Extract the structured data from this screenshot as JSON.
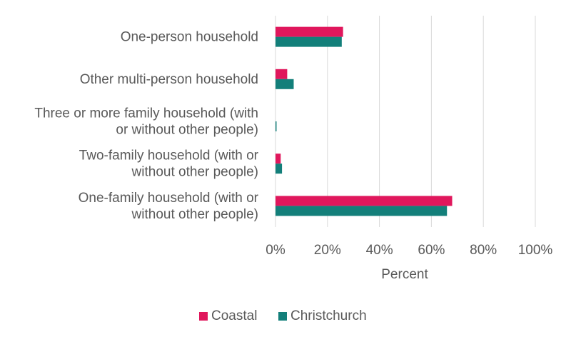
{
  "chart_data": {
    "type": "bar",
    "orientation": "horizontal",
    "categories": [
      "One-person household",
      "Other multi-person household",
      "Three or more family household (with or without other people)",
      "Two-family household (with or without other people)",
      "One-family household (with or without other people)"
    ],
    "category_lines": [
      [
        "One-person household"
      ],
      [
        "Other multi-person household"
      ],
      [
        "Three or more family household (with",
        "or without other people)"
      ],
      [
        "Two-family household (with or",
        "without other people)"
      ],
      [
        "One-family household (with or",
        "without other people)"
      ]
    ],
    "series": [
      {
        "name": "Coastal",
        "color": "#e0175c",
        "values": [
          26,
          4.5,
          0,
          2,
          68
        ]
      },
      {
        "name": "Christchurch",
        "color": "#137f7a",
        "values": [
          25.5,
          7,
          0.4,
          2.5,
          66
        ]
      }
    ],
    "xlabel": "Percent",
    "xlim": [
      0,
      100
    ],
    "xticks": [
      "0%",
      "20%",
      "40%",
      "60%",
      "80%",
      "100%"
    ],
    "grid": true,
    "legend_position": "bottom"
  }
}
